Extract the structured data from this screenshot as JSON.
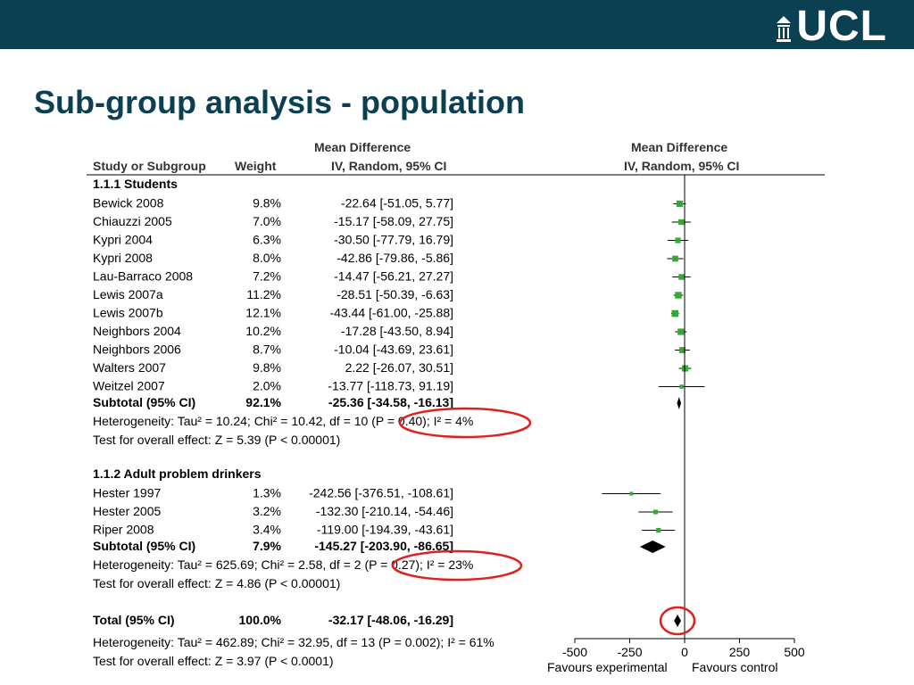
{
  "header": {
    "logo_text": "UCL",
    "title": "Sub-group analysis - population"
  },
  "colors": {
    "header_bar": "#0b3f52",
    "title": "#0b3f52",
    "marker": "#33aa33",
    "highlight_circle": "#e0201d"
  },
  "table_headers": {
    "study": "Study or Subgroup",
    "weight": "Weight",
    "md_line1": "Mean Difference",
    "md_line2": "IV, Random, 95% CI",
    "plot_line1": "Mean Difference",
    "plot_line2": "IV, Random, 95% CI"
  },
  "chart_data": {
    "type": "forest",
    "xlim": [
      -500,
      500
    ],
    "xticks": [
      -500,
      -250,
      0,
      250,
      500
    ],
    "x_tick_labels": [
      "-500",
      "-250",
      "0",
      "250",
      "500"
    ],
    "favours_left": "Favours experimental",
    "favours_right": "Favours control",
    "groups": [
      {
        "name": "1.1.1 Students",
        "studies": [
          {
            "study": "Bewick 2008",
            "weight": "9.8%",
            "ci_text": "-22.64 [-51.05, 5.77]",
            "md": -22.64,
            "lo": -51.05,
            "hi": 5.77
          },
          {
            "study": "Chiauzzi 2005",
            "weight": "7.0%",
            "ci_text": "-15.17 [-58.09, 27.75]",
            "md": -15.17,
            "lo": -58.09,
            "hi": 27.75
          },
          {
            "study": "Kypri 2004",
            "weight": "6.3%",
            "ci_text": "-30.50 [-77.79, 16.79]",
            "md": -30.5,
            "lo": -77.79,
            "hi": 16.79
          },
          {
            "study": "Kypri 2008",
            "weight": "8.0%",
            "ci_text": "-42.86 [-79.86, -5.86]",
            "md": -42.86,
            "lo": -79.86,
            "hi": -5.86
          },
          {
            "study": "Lau-Barraco 2008",
            "weight": "7.2%",
            "ci_text": "-14.47 [-56.21, 27.27]",
            "md": -14.47,
            "lo": -56.21,
            "hi": 27.27
          },
          {
            "study": "Lewis 2007a",
            "weight": "11.2%",
            "ci_text": "-28.51 [-50.39, -6.63]",
            "md": -28.51,
            "lo": -50.39,
            "hi": -6.63
          },
          {
            "study": "Lewis 2007b",
            "weight": "12.1%",
            "ci_text": "-43.44 [-61.00, -25.88]",
            "md": -43.44,
            "lo": -61.0,
            "hi": -25.88
          },
          {
            "study": "Neighbors 2004",
            "weight": "10.2%",
            "ci_text": "-17.28 [-43.50, 8.94]",
            "md": -17.28,
            "lo": -43.5,
            "hi": 8.94
          },
          {
            "study": "Neighbors 2006",
            "weight": "8.7%",
            "ci_text": "-10.04 [-43.69, 23.61]",
            "md": -10.04,
            "lo": -43.69,
            "hi": 23.61
          },
          {
            "study": "Walters 2007",
            "weight": "9.8%",
            "ci_text": "2.22 [-26.07, 30.51]",
            "md": 2.22,
            "lo": -26.07,
            "hi": 30.51
          },
          {
            "study": "Weitzel 2007",
            "weight": "2.0%",
            "ci_text": "-13.77 [-118.73, 91.19]",
            "md": -13.77,
            "lo": -118.73,
            "hi": 91.19
          }
        ],
        "subtotal": {
          "label": "Subtotal (95% CI)",
          "weight": "92.1%",
          "ci_text": "-25.36 [-34.58, -16.13]",
          "md": -25.36,
          "lo": -34.58,
          "hi": -16.13
        },
        "heterogeneity": "Heterogeneity: Tau² = 10.24; Chi² = 10.42, df = 10 (P = 0.40); I² = 4%",
        "overall": "Test for overall effect: Z = 5.39 (P < 0.00001)"
      },
      {
        "name": "1.1.2 Adult problem drinkers",
        "studies": [
          {
            "study": "Hester 1997",
            "weight": "1.3%",
            "ci_text": "-242.56 [-376.51, -108.61]",
            "md": -242.56,
            "lo": -376.51,
            "hi": -108.61
          },
          {
            "study": "Hester 2005",
            "weight": "3.2%",
            "ci_text": "-132.30 [-210.14, -54.46]",
            "md": -132.3,
            "lo": -210.14,
            "hi": -54.46
          },
          {
            "study": "Riper 2008",
            "weight": "3.4%",
            "ci_text": "-119.00 [-194.39, -43.61]",
            "md": -119.0,
            "lo": -194.39,
            "hi": -43.61
          }
        ],
        "subtotal": {
          "label": "Subtotal (95% CI)",
          "weight": "7.9%",
          "ci_text": "-145.27 [-203.90, -86.65]",
          "md": -145.27,
          "lo": -203.9,
          "hi": -86.65
        },
        "heterogeneity": "Heterogeneity: Tau² = 625.69; Chi² = 2.58, df = 2 (P = 0.27); I² = 23%",
        "overall": "Test for overall effect: Z = 4.86 (P < 0.00001)"
      }
    ],
    "total": {
      "label": "Total (95% CI)",
      "weight": "100.0%",
      "ci_text": "-32.17 [-48.06, -16.29]",
      "md": -32.17,
      "lo": -48.06,
      "hi": -16.29
    },
    "total_heterogeneity": "Heterogeneity: Tau² = 462.89; Chi² = 32.95, df = 13 (P = 0.002); I² = 61%",
    "total_overall": "Test for overall effect: Z = 3.97 (P < 0.0001)"
  }
}
